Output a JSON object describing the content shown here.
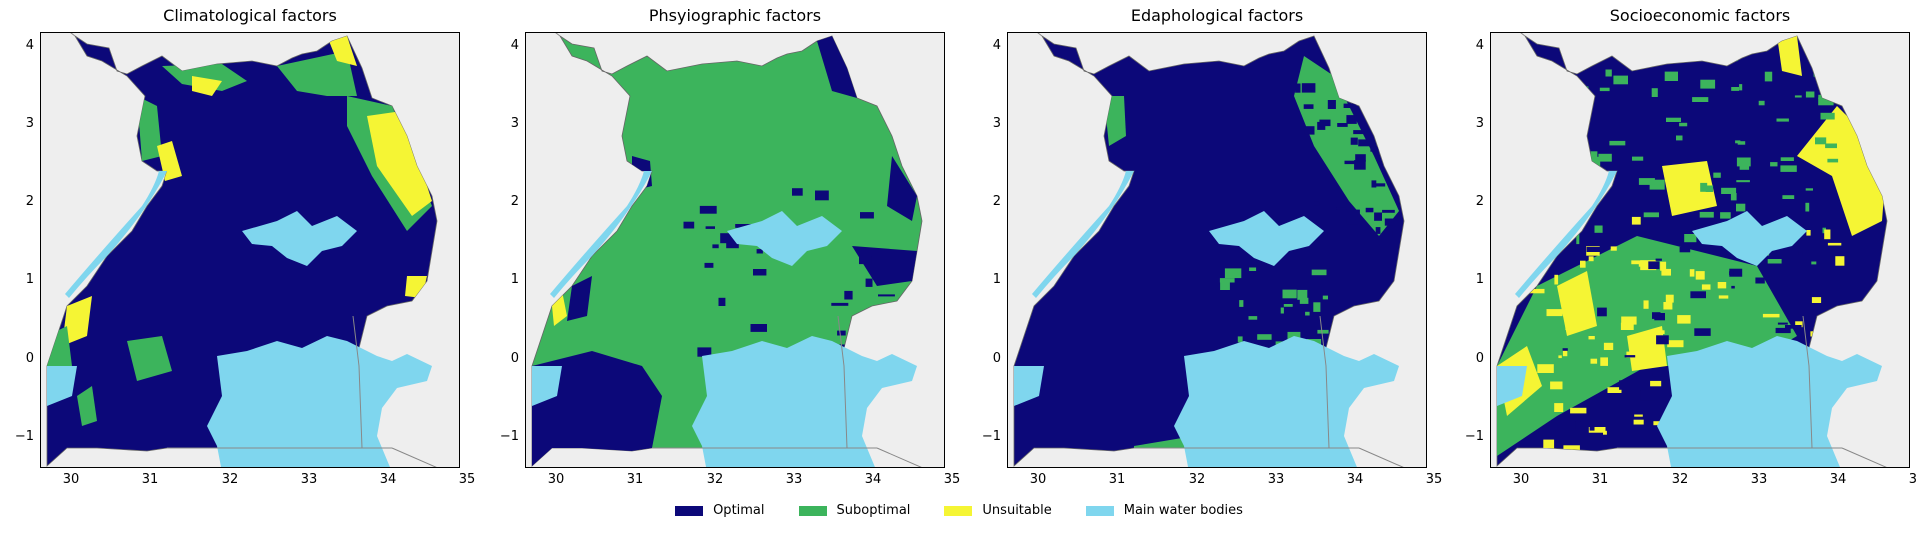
{
  "panels": [
    {
      "title": "Climatological factors",
      "variant": "climate"
    },
    {
      "title": "Phsyiographic factors",
      "variant": "physio"
    },
    {
      "title": "Edaphological factors",
      "variant": "edapho"
    },
    {
      "title": "Socioeconomic factors",
      "variant": "socio"
    }
  ],
  "axes": {
    "x_ticks": [
      "30",
      "31",
      "32",
      "33",
      "34",
      "35"
    ],
    "y_ticks": [
      "4",
      "3",
      "2",
      "1",
      "0",
      "−1"
    ],
    "xlim": [
      29.55,
      35.0
    ],
    "ylim": [
      -1.48,
      4.23
    ]
  },
  "legend": [
    {
      "label": "Optimal",
      "color": "#0c0879"
    },
    {
      "label": "Suboptimal",
      "color": "#3cb45c"
    },
    {
      "label": "Unsuitable",
      "color": "#f5f534"
    },
    {
      "label": "Main water bodies",
      "color": "#7fd6ee"
    }
  ],
  "colors": {
    "background": "#eeeeee",
    "border": "#888888"
  }
}
